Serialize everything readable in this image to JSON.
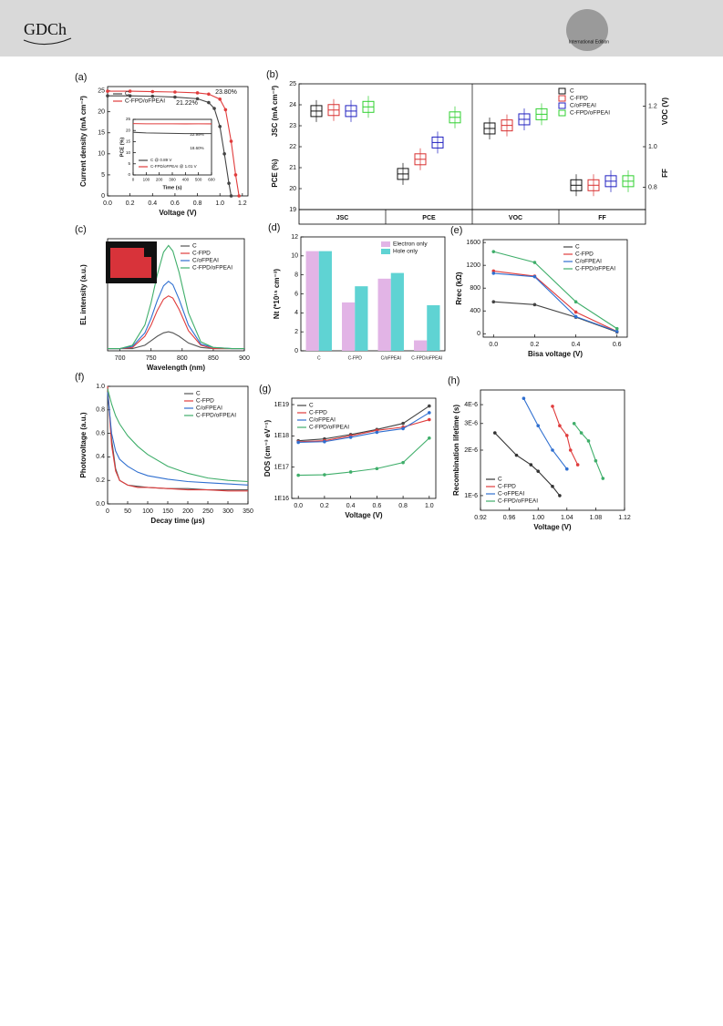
{
  "header": {
    "logo": "GDCh",
    "edition": "International Edition"
  },
  "chart_data": [
    {
      "type": "line",
      "panel_label": "(a)",
      "xlabel": "Voltage (V)",
      "ylabel": "Current density (mA cm⁻²)",
      "xlim": [
        0,
        1.25
      ],
      "xticks": [
        {
          "value": 0,
          "label": "0.0"
        },
        0.2,
        0.4,
        0.6,
        0.8,
        {
          "value": 1,
          "label": "1.0"
        },
        1.2
      ],
      "ylim": [
        0,
        26
      ],
      "yticks": [
        0,
        5,
        10,
        15,
        20,
        25
      ],
      "markers": true,
      "legend": "upper left",
      "annotations": [
        "21.22%",
        "23.80%"
      ],
      "series": [
        {
          "name": "C",
          "color": "#444444",
          "x": [
            0,
            0.2,
            0.4,
            0.6,
            0.8,
            0.9,
            0.95,
            1.0,
            1.04,
            1.08,
            1.1
          ],
          "values": [
            23.8,
            23.8,
            23.7,
            23.5,
            23.1,
            22.2,
            20.8,
            16.5,
            10,
            3,
            0
          ]
        },
        {
          "name": "C-FPD/oFPEAI",
          "color": "#e03c3c",
          "x": [
            0,
            0.2,
            0.4,
            0.6,
            0.8,
            0.9,
            1.0,
            1.05,
            1.1,
            1.14,
            1.17
          ],
          "values": [
            24.9,
            24.9,
            24.8,
            24.7,
            24.5,
            24.2,
            23,
            20.5,
            13,
            5,
            0
          ]
        }
      ]
    },
    {
      "type": "line",
      "xlabel": "Time (s)",
      "ylabel": "PCE (%)",
      "xlim": [
        0,
        600
      ],
      "xticks": [
        0,
        100,
        200,
        300,
        400,
        500,
        600
      ],
      "ylim": [
        0,
        25
      ],
      "yticks": [
        0,
        5,
        10,
        15,
        20,
        25
      ],
      "legend": "lower left",
      "annotations": [
        "22.99%",
        "18.60%"
      ],
      "x": [
        0,
        100,
        200,
        300,
        400,
        500,
        600
      ],
      "series": [
        {
          "name": "C @ 0.89 V",
          "color": "#444444",
          "values": [
            19.2,
            18.9,
            18.8,
            18.7,
            18.6,
            18.6,
            18.6
          ]
        },
        {
          "name": "C-FPD/oFPEAI @ 1.01 V",
          "color": "#e03c3c",
          "values": [
            23.1,
            23,
            23,
            23,
            22.99,
            23,
            22.99
          ]
        }
      ]
    },
    {
      "type": "box",
      "panel_label": "(b)",
      "ylabel": "PCE (%)",
      "ylabel_top": "JSC (mA cm⁻²)",
      "y2label": "VOC (V)",
      "y2label_bottom": "FF",
      "categories": [
        "JSC",
        "PCE",
        "VOC",
        "FF"
      ],
      "category_axis": [
        "y",
        "y",
        "y2",
        "y2"
      ],
      "ylim": [
        19,
        25
      ],
      "yticks": [
        19,
        20,
        21,
        22,
        23,
        24,
        25
      ],
      "y2lim": [
        0.69,
        1.31
      ],
      "y2ticks": [
        0.8,
        {
          "value": 1,
          "label": "1.0"
        },
        1.2
      ],
      "legend": "upper right",
      "series": [
        {
          "name": "C",
          "color": "#111111",
          "values": [
            23.7,
            20.7,
            1.09,
            0.81
          ]
        },
        {
          "name": "C-FPD",
          "color": "#d83030",
          "values": [
            23.75,
            21.4,
            1.105,
            0.81
          ]
        },
        {
          "name": "C/oFPEAI",
          "color": "#2020c0",
          "values": [
            23.7,
            22.2,
            1.135,
            0.83
          ]
        },
        {
          "name": "C-FPD/oFPEAI",
          "color": "#30d030",
          "values": [
            23.9,
            23.4,
            1.16,
            0.83
          ]
        }
      ]
    },
    {
      "type": "line",
      "panel_label": "(c)",
      "xlabel": "Wavelength (nm)",
      "ylabel": "EL intensity (a.u.)",
      "xlim": [
        680,
        900
      ],
      "xticks": [
        700,
        750,
        800,
        850,
        900
      ],
      "ylim": [
        0,
        1
      ],
      "legend": "upper right",
      "x": [
        680,
        700,
        720,
        740,
        750,
        760,
        770,
        778,
        785,
        795,
        810,
        830,
        850,
        880,
        900
      ],
      "series": [
        {
          "name": "C",
          "color": "#555555",
          "values": [
            0.02,
            0.02,
            0.02,
            0.05,
            0.09,
            0.13,
            0.16,
            0.17,
            0.16,
            0.13,
            0.07,
            0.03,
            0.02,
            0.02,
            0.02
          ]
        },
        {
          "name": "C-FPD",
          "color": "#e03c3c",
          "values": [
            0.02,
            0.02,
            0.03,
            0.13,
            0.23,
            0.36,
            0.46,
            0.49,
            0.47,
            0.37,
            0.18,
            0.05,
            0.02,
            0.02,
            0.02
          ]
        },
        {
          "name": "C/oFPEAI",
          "color": "#2f6fd0",
          "values": [
            0.02,
            0.02,
            0.04,
            0.16,
            0.29,
            0.45,
            0.58,
            0.62,
            0.59,
            0.46,
            0.23,
            0.06,
            0.03,
            0.02,
            0.02
          ]
        },
        {
          "name": "C-FPD/oFPEAI",
          "color": "#3fae6a",
          "values": [
            0.02,
            0.02,
            0.05,
            0.23,
            0.43,
            0.68,
            0.88,
            0.94,
            0.89,
            0.7,
            0.34,
            0.08,
            0.03,
            0.02,
            0.02
          ]
        }
      ]
    },
    {
      "type": "bar",
      "panel_label": "(d)",
      "ylabel": "Nt (*10¹⁵ cm⁻³)",
      "categories": [
        "C",
        "C-FPD",
        "C/oFPEAI",
        "C-FPD/oFPEAI"
      ],
      "ylim": [
        0,
        12
      ],
      "yticks": [
        0,
        2,
        4,
        6,
        8,
        10,
        12
      ],
      "legend": "upper right",
      "series": [
        {
          "name": "Electron only",
          "color": "#e2b4e6",
          "values": [
            10.5,
            5.1,
            7.6,
            1.1
          ]
        },
        {
          "name": "Hole only",
          "color": "#5fd3d3",
          "values": [
            10.5,
            6.8,
            8.2,
            4.8
          ]
        }
      ]
    },
    {
      "type": "line",
      "panel_label": "(e)",
      "xlabel": "Bisa voltage (V)",
      "ylabel": "Rrec (kΩ)",
      "xlim": [
        -0.05,
        0.65
      ],
      "xticks": [
        {
          "value": 0,
          "label": "0.0"
        },
        0.2,
        0.4,
        0.6
      ],
      "ylim": [
        -60,
        1650
      ],
      "yticks": [
        0,
        400,
        800,
        1200,
        1600
      ],
      "markers": true,
      "legend": "upper right",
      "x": [
        0,
        0.2,
        0.4,
        0.6
      ],
      "series": [
        {
          "name": "C",
          "color": "#444444",
          "values": [
            560,
            510,
            290,
            30
          ]
        },
        {
          "name": "C-FPD",
          "color": "#e03c3c",
          "values": [
            1100,
            1010,
            380,
            40
          ]
        },
        {
          "name": "C/oFPEAI",
          "color": "#2f6fd0",
          "values": [
            1060,
            1000,
            300,
            40
          ]
        },
        {
          "name": "C-FPD/oFPEAI",
          "color": "#3fae6a",
          "values": [
            1440,
            1250,
            560,
            90
          ]
        }
      ]
    },
    {
      "type": "line",
      "panel_label": "(f)",
      "xlabel": "Decay time (μs)",
      "ylabel": "Photovoltage (a.u.)",
      "xlim": [
        0,
        350
      ],
      "xticks": [
        0,
        50,
        100,
        150,
        200,
        250,
        300,
        350
      ],
      "ylim": [
        0,
        1
      ],
      "yticks": [
        {
          "value": 0,
          "label": "0.0"
        },
        0.2,
        0.4,
        0.6,
        0.8,
        {
          "value": 1,
          "label": "1.0"
        }
      ],
      "legend": "upper right",
      "x": [
        0,
        10,
        20,
        30,
        50,
        75,
        100,
        150,
        200,
        250,
        300,
        350
      ],
      "series": [
        {
          "name": "C",
          "color": "#555555",
          "values": [
            1,
            0.55,
            0.3,
            0.2,
            0.16,
            0.15,
            0.14,
            0.13,
            0.13,
            0.12,
            0.12,
            0.12
          ]
        },
        {
          "name": "C-FPD",
          "color": "#e03c3c",
          "values": [
            1,
            0.5,
            0.28,
            0.2,
            0.16,
            0.14,
            0.14,
            0.13,
            0.12,
            0.12,
            0.11,
            0.11
          ]
        },
        {
          "name": "C/oFPEAI",
          "color": "#2f6fd0",
          "values": [
            0.95,
            0.6,
            0.45,
            0.38,
            0.32,
            0.27,
            0.24,
            0.21,
            0.19,
            0.18,
            0.17,
            0.16
          ]
        },
        {
          "name": "C-FPD/oFPEAI",
          "color": "#3fae6a",
          "values": [
            0.98,
            0.85,
            0.75,
            0.68,
            0.58,
            0.49,
            0.42,
            0.32,
            0.26,
            0.22,
            0.2,
            0.19
          ]
        }
      ]
    },
    {
      "type": "line",
      "panel_label": "(g)",
      "xlabel": "Voltage (V)",
      "ylabel": "DOS (cm⁻³ eV⁻¹)",
      "ylog": true,
      "xlim": [
        -0.05,
        1.05
      ],
      "xticks": [
        {
          "value": 0,
          "label": "0.0"
        },
        0.2,
        0.4,
        0.6,
        0.8,
        {
          "value": 1,
          "label": "1.0"
        }
      ],
      "ylim": [
        1e+16,
        1.6e+19
      ],
      "yticks": [
        {
          "value": 1e+16,
          "label": "1E16"
        },
        {
          "value": 1e+17,
          "label": "1E17"
        },
        {
          "value": 1e+18,
          "label": "1E18"
        },
        {
          "value": 1e+19,
          "label": "1E19"
        }
      ],
      "markers": true,
      "legend": "upper left",
      "x": [
        0,
        0.2,
        0.4,
        0.6,
        0.8,
        1
      ],
      "series": [
        {
          "name": "C",
          "color": "#444444",
          "values": [
            7e+17,
            8e+17,
            1.1e+18,
            1.6e+18,
            2.5e+18,
            9e+18
          ]
        },
        {
          "name": "C-FPD",
          "color": "#e03c3c",
          "values": [
            6.5e+17,
            7e+17,
            1e+18,
            1.5e+18,
            1.9e+18,
            3.3e+18
          ]
        },
        {
          "name": "C/oFPEAI",
          "color": "#2f6fd0",
          "values": [
            6.2e+17,
            6.5e+17,
            9e+17,
            1.3e+18,
            1.7e+18,
            5.5e+18
          ]
        },
        {
          "name": "C-FPD/oFPEAI",
          "color": "#3fae6a",
          "values": [
            5.5e+16,
            5.7e+16,
            7e+16,
            9e+16,
            1.4e+17,
            8.5e+17
          ]
        }
      ]
    },
    {
      "type": "scatter",
      "panel_label": "(h)",
      "xlabel": "Voltage (V)",
      "ylabel": "Recombination lifetime (s)",
      "ylog": true,
      "lines": true,
      "xlim": [
        0.92,
        1.12
      ],
      "xticks": [
        0.92,
        0.96,
        {
          "value": 1,
          "label": "1.00"
        },
        1.04,
        1.08,
        1.12
      ],
      "ylim": [
        8e-07,
        5e-06
      ],
      "yticks": [
        {
          "value": 1e-06,
          "label": "1E-6"
        },
        {
          "value": 2e-06,
          "label": "2E-6"
        },
        {
          "value": 3e-06,
          "label": "3E-6"
        },
        {
          "value": 4e-06,
          "label": "4E-6"
        }
      ],
      "legend": "lower left",
      "series": [
        {
          "name": "C",
          "color": "#333333",
          "x": [
            0.94,
            0.97,
            0.99,
            1.0,
            1.02,
            1.03
          ],
          "values": [
            2.6e-06,
            1.85e-06,
            1.6e-06,
            1.45e-06,
            1.15e-06,
            1e-06
          ]
        },
        {
          "name": "C-FPD",
          "color": "#e03c3c",
          "x": [
            1.02,
            1.03,
            1.04,
            1.045,
            1.055
          ],
          "values": [
            3.9e-06,
            2.9e-06,
            2.5e-06,
            2e-06,
            1.6e-06
          ]
        },
        {
          "name": "C-oFPEAI",
          "color": "#2f6fd0",
          "x": [
            0.98,
            1.0,
            1.02,
            1.04
          ],
          "values": [
            4.4e-06,
            2.9e-06,
            2e-06,
            1.5e-06
          ]
        },
        {
          "name": "C-FPD/oFPEAI",
          "color": "#3fae6a",
          "x": [
            1.05,
            1.06,
            1.07,
            1.08,
            1.09
          ],
          "values": [
            3e-06,
            2.6e-06,
            2.3e-06,
            1.7e-06,
            1.3e-06
          ]
        }
      ]
    }
  ]
}
